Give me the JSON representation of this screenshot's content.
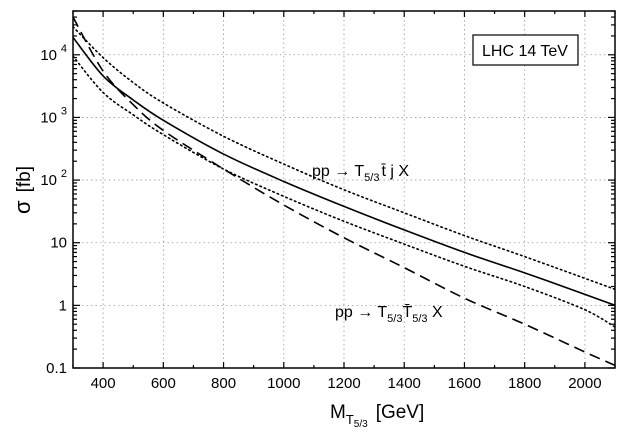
{
  "chart_data": {
    "type": "line",
    "xlabel_main": "M",
    "xlabel_sub": "T",
    "xlabel_subsub": "5/3",
    "xlabel_unit": "[GeV]",
    "ylabel_main": "σ",
    "ylabel_unit": "[fb]",
    "xlim": [
      300,
      2100
    ],
    "ylim": [
      0.1,
      50000
    ],
    "yscale": "log",
    "grid": true,
    "x_ticks": [
      400,
      600,
      800,
      1000,
      1200,
      1400,
      1600,
      1800,
      2000
    ],
    "x_tick_labels": [
      "400",
      "600",
      "800",
      "1000",
      "1200",
      "1400",
      "1600",
      "1800",
      "2000"
    ],
    "y_ticks": [
      0.1,
      1,
      10,
      100,
      1000,
      10000
    ],
    "y_tick_labels": [
      {
        "base": "0.1",
        "exp": ""
      },
      {
        "base": "1",
        "exp": ""
      },
      {
        "base": "10",
        "exp": ""
      },
      {
        "base": "10",
        "exp": "2"
      },
      {
        "base": "10",
        "exp": "3"
      },
      {
        "base": "10",
        "exp": "4"
      }
    ],
    "legend_box": "LHC 14 TeV",
    "annotations": {
      "single": {
        "prefix": "pp → T",
        "sub": "5/3",
        "mid": "t̄ j X"
      },
      "pair": {
        "prefix": "pp → T",
        "sub1": "5/3",
        "mid": "T̄",
        "sub2": "5/3",
        "suffix": " X"
      }
    },
    "series": [
      {
        "name": "single production (central)",
        "style": "solid",
        "x": [
          300,
          400,
          500,
          600,
          800,
          1000,
          1200,
          1400,
          1600,
          1800,
          2000,
          2100
        ],
        "y": [
          19000,
          4600,
          1900,
          900,
          260,
          95,
          38,
          16,
          7.0,
          3.3,
          1.5,
          1.0
        ]
      },
      {
        "name": "single production (upper)",
        "style": "dotted",
        "x": [
          300,
          400,
          500,
          600,
          800,
          1000,
          1200,
          1400,
          1600,
          1800,
          2000,
          2100
        ],
        "y": [
          28000,
          9000,
          3600,
          1700,
          500,
          180,
          70,
          30,
          13,
          6.0,
          2.7,
          1.8
        ]
      },
      {
        "name": "single production (lower)",
        "style": "dotted",
        "x": [
          300,
          400,
          500,
          600,
          800,
          1000,
          1200,
          1400,
          1600,
          1800,
          2000,
          2100
        ],
        "y": [
          9500,
          2500,
          1100,
          530,
          150,
          55,
          22,
          9.5,
          4.2,
          2.0,
          0.85,
          0.45
        ]
      },
      {
        "name": "pair production",
        "style": "dashed",
        "x": [
          300,
          400,
          500,
          600,
          800,
          1000,
          1200,
          1400,
          1600,
          1800,
          2000,
          2100
        ],
        "y": [
          40000,
          5500,
          1600,
          620,
          150,
          40,
          12,
          4.0,
          1.3,
          0.5,
          0.18,
          0.11
        ]
      }
    ]
  }
}
